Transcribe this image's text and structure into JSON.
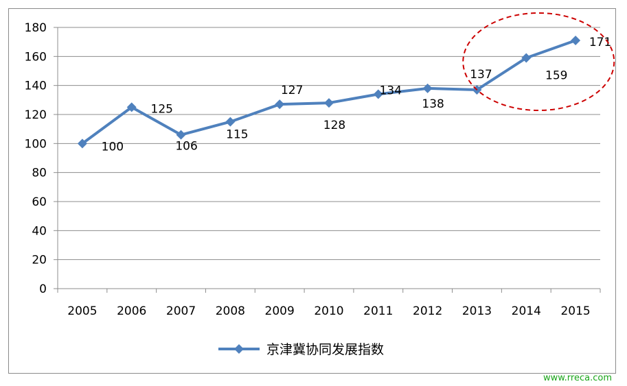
{
  "chart_data": {
    "type": "line",
    "categories": [
      "2005",
      "2006",
      "2007",
      "2008",
      "2009",
      "2010",
      "2011",
      "2012",
      "2013",
      "2014",
      "2015"
    ],
    "series": [
      {
        "name": "京津冀协同发展指数",
        "values": [
          100,
          125,
          106,
          115,
          127,
          128,
          134,
          138,
          137,
          159,
          171
        ],
        "color": "#4f81bd"
      }
    ],
    "data_labels": [
      "100",
      "125",
      "106",
      "115",
      "127",
      "128",
      "134",
      "138",
      "137",
      "159",
      "171"
    ],
    "ylim": [
      0,
      180
    ],
    "yticks": [
      0,
      20,
      40,
      60,
      80,
      100,
      120,
      140,
      160,
      180
    ],
    "grid": true,
    "legend_position": "bottom",
    "highlight": {
      "shape": "dashed-ellipse",
      "color": "#cc0000",
      "covers": [
        "2013",
        "2014",
        "2015"
      ]
    }
  },
  "watermark": "www.rreca.com"
}
